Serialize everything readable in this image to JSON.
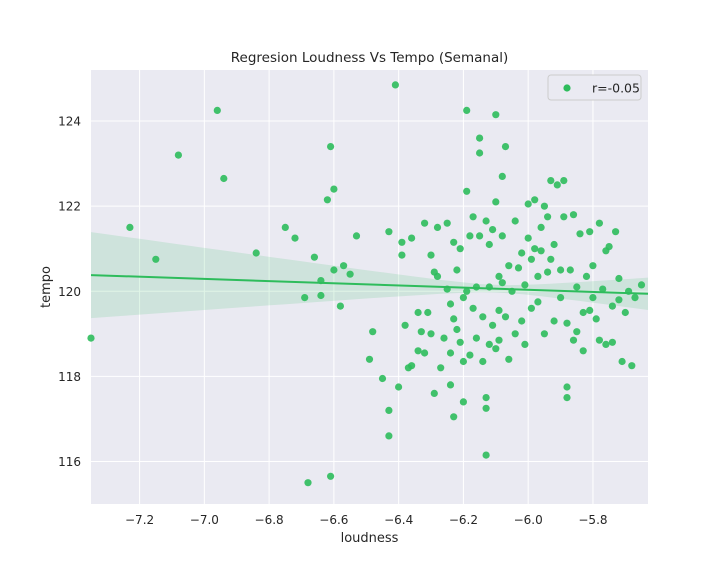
{
  "chart_data": {
    "type": "scatter",
    "title": "Regresion Loudness Vs Tempo (Semanal)",
    "xlabel": "loudness",
    "ylabel": "tempo",
    "xlim": [
      -7.35,
      -5.63
    ],
    "ylim": [
      115.0,
      125.2
    ],
    "xticks": [
      -7.2,
      -7.0,
      -6.8,
      -6.6,
      -6.4,
      -6.2,
      -6.0,
      -5.8
    ],
    "xtick_labels": [
      "−7.2",
      "−7.0",
      "−6.8",
      "−6.6",
      "−6.4",
      "−6.2",
      "−6.0",
      "−5.8"
    ],
    "yticks": [
      116,
      118,
      120,
      122,
      124
    ],
    "ytick_labels": [
      "116",
      "118",
      "120",
      "122",
      "124"
    ],
    "grid": true,
    "legend": {
      "position": "top-right",
      "label": "r=-0.05"
    },
    "colors": {
      "background": "#eaeaf2",
      "grid": "#ffffff",
      "points": "#2ebc5c",
      "line": "#2ebc5c",
      "band": "#2ebc5c"
    },
    "regression": {
      "x": [
        -7.35,
        -5.63
      ],
      "y": [
        120.38,
        119.94
      ],
      "band_upper": [
        121.37,
        120.34
      ],
      "band_lower": [
        119.35,
        119.58
      ],
      "band_center_x": -6.1,
      "band_center_y": 120.07,
      "band_center_halfwidth": 0.09
    },
    "series": [
      {
        "points": [
          [
            -7.35,
            118.9
          ],
          [
            -7.23,
            121.5
          ],
          [
            -7.15,
            120.75
          ],
          [
            -7.08,
            123.2
          ],
          [
            -6.96,
            124.25
          ],
          [
            -6.94,
            122.65
          ],
          [
            -6.84,
            120.9
          ],
          [
            -6.75,
            121.5
          ],
          [
            -6.72,
            121.25
          ],
          [
            -6.69,
            119.85
          ],
          [
            -6.68,
            115.5
          ],
          [
            -6.66,
            120.8
          ],
          [
            -6.64,
            119.9
          ],
          [
            -6.64,
            120.25
          ],
          [
            -6.62,
            122.15
          ],
          [
            -6.61,
            123.4
          ],
          [
            -6.61,
            115.65
          ],
          [
            -6.6,
            122.4
          ],
          [
            -6.6,
            120.5
          ],
          [
            -6.58,
            119.65
          ],
          [
            -6.57,
            120.6
          ],
          [
            -6.55,
            120.4
          ],
          [
            -6.53,
            121.3
          ],
          [
            -6.49,
            118.4
          ],
          [
            -6.48,
            119.05
          ],
          [
            -6.45,
            117.95
          ],
          [
            -6.43,
            121.4
          ],
          [
            -6.43,
            117.2
          ],
          [
            -6.43,
            116.6
          ],
          [
            -6.41,
            124.85
          ],
          [
            -6.4,
            117.75
          ],
          [
            -6.39,
            120.85
          ],
          [
            -6.39,
            121.15
          ],
          [
            -6.38,
            119.2
          ],
          [
            -6.37,
            118.2
          ],
          [
            -6.36,
            118.25
          ],
          [
            -6.36,
            121.25
          ],
          [
            -6.34,
            118.6
          ],
          [
            -6.34,
            119.5
          ],
          [
            -6.33,
            119.05
          ],
          [
            -6.32,
            118.55
          ],
          [
            -6.32,
            121.6
          ],
          [
            -6.31,
            119.5
          ],
          [
            -6.3,
            120.85
          ],
          [
            -6.3,
            119.0
          ],
          [
            -6.29,
            117.6
          ],
          [
            -6.29,
            120.45
          ],
          [
            -6.28,
            120.35
          ],
          [
            -6.28,
            121.5
          ],
          [
            -6.27,
            118.2
          ],
          [
            -6.26,
            118.9
          ],
          [
            -6.25,
            120.05
          ],
          [
            -6.25,
            121.6
          ],
          [
            -6.24,
            118.55
          ],
          [
            -6.24,
            119.7
          ],
          [
            -6.24,
            117.8
          ],
          [
            -6.23,
            117.05
          ],
          [
            -6.23,
            119.35
          ],
          [
            -6.23,
            121.15
          ],
          [
            -6.22,
            120.5
          ],
          [
            -6.22,
            119.1
          ],
          [
            -6.21,
            118.8
          ],
          [
            -6.21,
            121.0
          ],
          [
            -6.2,
            119.85
          ],
          [
            -6.2,
            118.35
          ],
          [
            -6.2,
            117.4
          ],
          [
            -6.19,
            120.0
          ],
          [
            -6.19,
            122.35
          ],
          [
            -6.19,
            124.25
          ],
          [
            -6.18,
            121.3
          ],
          [
            -6.18,
            118.5
          ],
          [
            -6.17,
            119.6
          ],
          [
            -6.17,
            121.75
          ],
          [
            -6.16,
            120.1
          ],
          [
            -6.16,
            118.9
          ],
          [
            -6.15,
            123.6
          ],
          [
            -6.15,
            123.25
          ],
          [
            -6.15,
            121.3
          ],
          [
            -6.14,
            119.4
          ],
          [
            -6.14,
            118.35
          ],
          [
            -6.13,
            117.5
          ],
          [
            -6.13,
            117.25
          ],
          [
            -6.13,
            116.15
          ],
          [
            -6.13,
            121.65
          ],
          [
            -6.12,
            121.1
          ],
          [
            -6.12,
            120.1
          ],
          [
            -6.12,
            118.75
          ],
          [
            -6.11,
            119.2
          ],
          [
            -6.11,
            121.45
          ],
          [
            -6.1,
            122.1
          ],
          [
            -6.1,
            118.65
          ],
          [
            -6.1,
            124.15
          ],
          [
            -6.09,
            120.35
          ],
          [
            -6.09,
            119.55
          ],
          [
            -6.09,
            118.85
          ],
          [
            -6.08,
            122.7
          ],
          [
            -6.08,
            121.3
          ],
          [
            -6.08,
            120.2
          ],
          [
            -6.07,
            123.4
          ],
          [
            -6.07,
            119.4
          ],
          [
            -6.06,
            120.6
          ],
          [
            -6.06,
            118.4
          ],
          [
            -6.05,
            120.0
          ],
          [
            -6.04,
            121.65
          ],
          [
            -6.04,
            119.0
          ],
          [
            -6.03,
            120.55
          ],
          [
            -6.02,
            120.9
          ],
          [
            -6.02,
            119.3
          ],
          [
            -6.01,
            120.15
          ],
          [
            -6.01,
            118.75
          ],
          [
            -6.0,
            121.25
          ],
          [
            -6.0,
            122.05
          ],
          [
            -5.99,
            120.75
          ],
          [
            -5.99,
            119.6
          ],
          [
            -5.98,
            121.0
          ],
          [
            -5.98,
            122.15
          ],
          [
            -5.97,
            120.35
          ],
          [
            -5.97,
            119.75
          ],
          [
            -5.96,
            120.95
          ],
          [
            -5.96,
            121.5
          ],
          [
            -5.95,
            122.0
          ],
          [
            -5.95,
            119.0
          ],
          [
            -5.94,
            120.45
          ],
          [
            -5.94,
            121.75
          ],
          [
            -5.93,
            120.75
          ],
          [
            -5.93,
            122.6
          ],
          [
            -5.92,
            119.3
          ],
          [
            -5.92,
            121.1
          ],
          [
            -5.91,
            122.5
          ],
          [
            -5.9,
            120.5
          ],
          [
            -5.9,
            119.85
          ],
          [
            -5.89,
            122.6
          ],
          [
            -5.89,
            121.75
          ],
          [
            -5.88,
            119.25
          ],
          [
            -5.88,
            117.5
          ],
          [
            -5.88,
            117.75
          ],
          [
            -5.87,
            120.5
          ],
          [
            -5.86,
            121.8
          ],
          [
            -5.86,
            118.85
          ],
          [
            -5.85,
            120.1
          ],
          [
            -5.85,
            119.05
          ],
          [
            -5.84,
            121.35
          ],
          [
            -5.83,
            119.5
          ],
          [
            -5.83,
            118.6
          ],
          [
            -5.82,
            120.35
          ],
          [
            -5.81,
            119.55
          ],
          [
            -5.81,
            121.4
          ],
          [
            -5.8,
            119.85
          ],
          [
            -5.8,
            120.6
          ],
          [
            -5.79,
            119.35
          ],
          [
            -5.78,
            121.6
          ],
          [
            -5.78,
            118.85
          ],
          [
            -5.77,
            120.05
          ],
          [
            -5.76,
            120.95
          ],
          [
            -5.76,
            118.75
          ],
          [
            -5.75,
            121.05
          ],
          [
            -5.74,
            119.65
          ],
          [
            -5.74,
            118.8
          ],
          [
            -5.73,
            121.4
          ],
          [
            -5.72,
            120.3
          ],
          [
            -5.72,
            119.8
          ],
          [
            -5.71,
            118.35
          ],
          [
            -5.7,
            119.5
          ],
          [
            -5.69,
            120.0
          ],
          [
            -5.68,
            118.25
          ],
          [
            -5.67,
            119.85
          ],
          [
            -5.65,
            120.15
          ]
        ]
      }
    ]
  }
}
